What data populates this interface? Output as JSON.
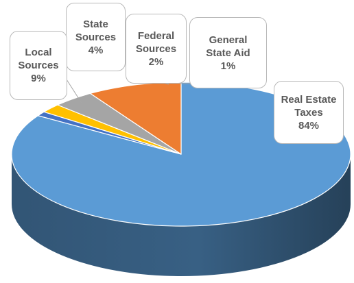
{
  "chart_data": {
    "type": "pie",
    "title": "",
    "slices": [
      {
        "label_lines": [
          "Real Estate",
          "Taxes"
        ],
        "value": 84,
        "value_label": "84%",
        "color": "#5b9bd5"
      },
      {
        "label_lines": [
          "General",
          "State Aid"
        ],
        "value": 1,
        "value_label": "1%",
        "color": "#4472c4"
      },
      {
        "label_lines": [
          "Federal",
          "Sources"
        ],
        "value": 2,
        "value_label": "2%",
        "color": "#ffc000"
      },
      {
        "label_lines": [
          "State",
          "Sources"
        ],
        "value": 4,
        "value_label": "4%",
        "color": "#a5a5a5"
      },
      {
        "label_lines": [
          "Local",
          "Sources"
        ],
        "value": 9,
        "value_label": "9%",
        "color": "#ed7d31"
      }
    ]
  }
}
